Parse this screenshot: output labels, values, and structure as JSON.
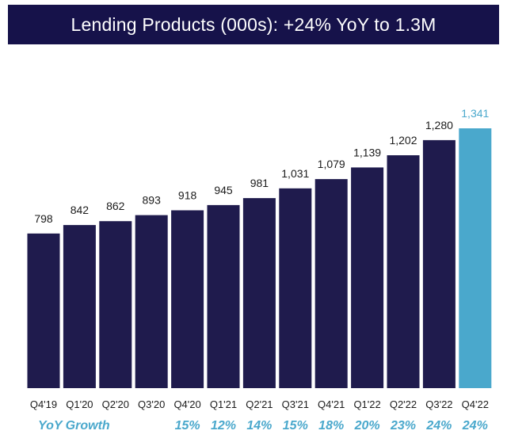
{
  "title": "Lending Products (000s): +24% YoY to 1.3M",
  "colors": {
    "bar": "#1f1b4d",
    "highlight": "#4aa8cc",
    "title_bg": "#16124a"
  },
  "chart_data": {
    "type": "bar",
    "title": "Lending Products (000s): +24% YoY to 1.3M",
    "categories": [
      "Q4'19",
      "Q1'20",
      "Q2'20",
      "Q3'20",
      "Q4'20",
      "Q1'21",
      "Q2'21",
      "Q3'21",
      "Q4'21",
      "Q1'22",
      "Q2'22",
      "Q3'22",
      "Q4'22"
    ],
    "values": [
      798,
      842,
      862,
      893,
      918,
      945,
      981,
      1031,
      1079,
      1139,
      1202,
      1280,
      1341
    ],
    "value_labels": [
      "798",
      "842",
      "862",
      "893",
      "918",
      "945",
      "981",
      "1,031",
      "1,079",
      "1,139",
      "1,202",
      "1,280",
      "1,341"
    ],
    "highlight_index": 12,
    "ylim": [
      0,
      1341
    ],
    "grid": false,
    "xlabel": "",
    "ylabel": "",
    "yoy_growth": {
      "label": "YoY Growth",
      "values": [
        "",
        "",
        "",
        "",
        "15%",
        "12%",
        "14%",
        "15%",
        "18%",
        "20%",
        "23%",
        "24%",
        "24%"
      ]
    }
  }
}
